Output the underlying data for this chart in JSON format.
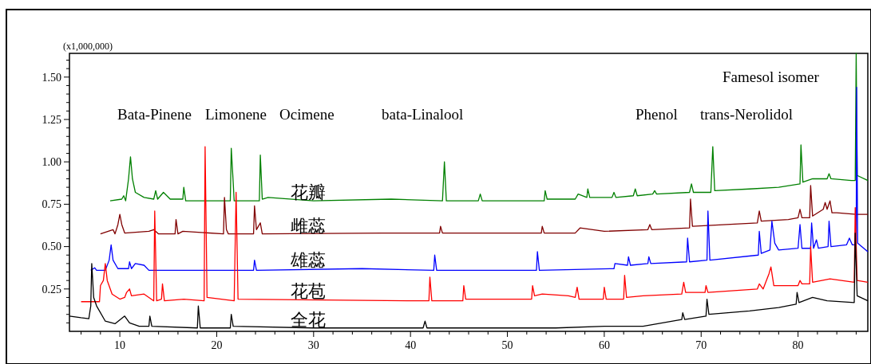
{
  "chart_data": {
    "type": "line",
    "ylabel": "(x1,000,000)",
    "annotations": [
      "Bata-Pinene",
      "Limonene",
      "Ocimene",
      "bata-Linalool",
      "Phenol",
      "trans-Nerolidol",
      "Famesol isomer"
    ],
    "xlim": [
      4.8,
      87.2
    ],
    "ylim": [
      0,
      1.64
    ],
    "xticks": [
      {
        "value": 6,
        "label": null
      },
      {
        "value": 8,
        "label": null
      },
      10,
      {
        "value": 12,
        "label": null
      },
      {
        "value": 14,
        "label": null
      },
      {
        "value": 16,
        "label": null
      },
      {
        "value": 18,
        "label": null
      },
      20,
      {
        "value": 22,
        "label": null
      },
      {
        "value": 24,
        "label": null
      },
      {
        "value": 26,
        "label": null
      },
      {
        "value": 28,
        "label": null
      },
      30,
      {
        "value": 32,
        "label": null
      },
      {
        "value": 34,
        "label": null
      },
      {
        "value": 36,
        "label": null
      },
      {
        "value": 38,
        "label": null
      },
      40,
      {
        "value": 42,
        "label": null
      },
      {
        "value": 44,
        "label": null
      },
      {
        "value": 46,
        "label": null
      },
      {
        "value": 48,
        "label": null
      },
      50,
      {
        "value": 52,
        "label": null
      },
      {
        "value": 54,
        "label": null
      },
      {
        "value": 56,
        "label": null
      },
      {
        "value": 58,
        "label": null
      },
      60,
      {
        "value": 62,
        "label": null
      },
      {
        "value": 64,
        "label": null
      },
      {
        "value": 66,
        "label": null
      },
      {
        "value": 68,
        "label": null
      },
      70,
      {
        "value": 72,
        "label": null
      },
      {
        "value": 74,
        "label": null
      },
      {
        "value": 76,
        "label": null
      },
      {
        "value": 78,
        "label": null
      },
      80,
      {
        "value": 82,
        "label": null
      },
      {
        "value": 84,
        "label": null
      },
      {
        "value": 86,
        "label": null
      }
    ],
    "yticks": [
      {
        "value": 0.05,
        "label": null
      },
      {
        "value": 0.1,
        "label": null
      },
      {
        "value": 0.15,
        "label": null
      },
      {
        "value": 0.2,
        "label": null
      },
      {
        "value": 0.25,
        "label": "0.25"
      },
      {
        "value": 0.3,
        "label": null
      },
      {
        "value": 0.35,
        "label": null
      },
      {
        "value": 0.4,
        "label": null
      },
      {
        "value": 0.45,
        "label": null
      },
      {
        "value": 0.5,
        "label": "0.50"
      },
      {
        "value": 0.55,
        "label": null
      },
      {
        "value": 0.6,
        "label": null
      },
      {
        "value": 0.65,
        "label": null
      },
      {
        "value": 0.7,
        "label": null
      },
      {
        "value": 0.75,
        "label": "0.75"
      },
      {
        "value": 0.8,
        "label": null
      },
      {
        "value": 0.85,
        "label": null
      },
      {
        "value": 0.9,
        "label": null
      },
      {
        "value": 0.95,
        "label": null
      },
      {
        "value": 1.0,
        "label": "1.00"
      },
      {
        "value": 1.05,
        "label": null
      },
      {
        "value": 1.1,
        "label": null
      },
      {
        "value": 1.15,
        "label": null
      },
      {
        "value": 1.2,
        "label": null
      },
      {
        "value": 1.25,
        "label": "1.25"
      },
      {
        "value": 1.3,
        "label": null
      },
      {
        "value": 1.35,
        "label": null
      },
      {
        "value": 1.4,
        "label": null
      },
      {
        "value": 1.45,
        "label": null
      },
      {
        "value": 1.5,
        "label": "1.50"
      },
      {
        "value": 1.55,
        "label": null
      },
      {
        "value": 1.6,
        "label": null
      }
    ],
    "series": [
      {
        "name": "花瓣",
        "color": "#008000",
        "x": [
          9,
          10.2,
          10.4,
          10.6,
          10.9,
          11.1,
          11.3,
          11.6,
          12.5,
          13.5,
          13.7,
          13.9,
          14.5,
          15.2,
          16.5,
          16.6,
          16.8,
          21.4,
          21.5,
          21.7,
          21.8,
          24.4,
          24.5,
          24.7,
          25.3,
          30,
          38,
          43.3,
          43.5,
          43.7,
          47,
          47.2,
          47.4,
          53.8,
          53.9,
          54.1,
          57,
          57.3,
          58.2,
          58.3,
          58.5,
          60.8,
          61,
          61.2,
          63,
          63.2,
          63.4,
          65,
          65.2,
          65.4,
          68.8,
          69,
          69.2,
          71,
          71.2,
          71.4,
          75,
          78,
          80.2,
          80.3,
          80.5,
          81.5,
          83,
          83.2,
          83.4,
          85.5,
          85.9,
          86,
          86.1,
          87.2
        ],
        "values": [
          0.77,
          0.78,
          0.8,
          0.77,
          0.9,
          1.03,
          0.9,
          0.82,
          0.79,
          0.78,
          0.83,
          0.78,
          0.82,
          0.78,
          0.78,
          0.85,
          0.77,
          0.77,
          1.08,
          0.88,
          0.77,
          0.77,
          1.04,
          0.78,
          0.79,
          0.77,
          0.78,
          0.77,
          1.0,
          0.77,
          0.77,
          0.81,
          0.77,
          0.77,
          0.83,
          0.78,
          0.78,
          0.81,
          0.79,
          0.84,
          0.79,
          0.79,
          0.82,
          0.79,
          0.8,
          0.84,
          0.8,
          0.81,
          0.83,
          0.81,
          0.82,
          0.87,
          0.82,
          0.82,
          1.09,
          0.83,
          0.84,
          0.85,
          0.87,
          1.1,
          0.88,
          0.9,
          0.9,
          0.93,
          0.9,
          0.89,
          0.89,
          1.64,
          0.92,
          0.89
        ]
      },
      {
        "name": "雌蕊",
        "color": "#800000",
        "x": [
          8,
          9.3,
          9.5,
          9.8,
          10,
          10.2,
          10.5,
          13,
          13.5,
          14,
          15.7,
          15.8,
          16,
          16.5,
          20.7,
          20.8,
          21,
          21.2,
          23.8,
          23.9,
          24.1,
          24.5,
          24.7,
          37,
          43,
          43.1,
          43.3,
          53.5,
          53.6,
          53.8,
          57,
          57.5,
          60,
          64.5,
          64.7,
          64.9,
          68.8,
          68.9,
          69.1,
          75.8,
          76,
          76.2,
          79,
          80,
          80.2,
          80.4,
          81.2,
          81.3,
          81.5,
          82.6,
          82.8,
          83,
          83.3,
          83.5,
          84,
          86,
          87.2
        ],
        "values": [
          0.575,
          0.6,
          0.575,
          0.63,
          0.69,
          0.63,
          0.58,
          0.59,
          0.6,
          0.575,
          0.575,
          0.66,
          0.575,
          0.59,
          0.575,
          0.79,
          0.6,
          0.575,
          0.575,
          0.74,
          0.6,
          0.64,
          0.575,
          0.58,
          0.58,
          0.62,
          0.58,
          0.58,
          0.62,
          0.58,
          0.58,
          0.61,
          0.59,
          0.6,
          0.63,
          0.6,
          0.61,
          0.78,
          0.62,
          0.64,
          0.71,
          0.65,
          0.66,
          0.67,
          0.72,
          0.67,
          0.67,
          0.86,
          0.68,
          0.72,
          0.76,
          0.72,
          0.77,
          0.7,
          0.7,
          0.69,
          0.69
        ]
      },
      {
        "name": "雄蕊",
        "color": "#0000ff",
        "x": [
          7,
          7.4,
          7.6,
          8.5,
          8.9,
          9.1,
          9.3,
          9.8,
          10.9,
          11,
          11.2,
          11.6,
          12.5,
          13,
          23.8,
          23.9,
          24.1,
          35,
          42.4,
          42.5,
          42.7,
          53,
          53.1,
          53.3,
          61,
          61.1,
          62.4,
          62.5,
          62.7,
          64.5,
          64.6,
          64.8,
          68.5,
          68.6,
          68.8,
          70.6,
          70.7,
          70.9,
          75.9,
          76,
          76.2,
          77.1,
          77.3,
          77.6,
          78,
          80,
          80.2,
          80.4,
          81.3,
          81.4,
          81.6,
          81.9,
          82.1,
          83.1,
          83.2,
          83.4,
          85,
          85.3,
          85.6,
          86,
          86.05,
          86.15,
          87.2
        ],
        "values": [
          0.36,
          0.375,
          0.36,
          0.36,
          0.42,
          0.51,
          0.42,
          0.37,
          0.37,
          0.41,
          0.37,
          0.4,
          0.39,
          0.36,
          0.36,
          0.42,
          0.36,
          0.37,
          0.36,
          0.45,
          0.36,
          0.36,
          0.47,
          0.36,
          0.37,
          0.4,
          0.39,
          0.44,
          0.39,
          0.4,
          0.44,
          0.4,
          0.41,
          0.55,
          0.41,
          0.42,
          0.71,
          0.42,
          0.45,
          0.59,
          0.46,
          0.48,
          0.65,
          0.52,
          0.48,
          0.49,
          0.63,
          0.49,
          0.49,
          0.64,
          0.49,
          0.54,
          0.49,
          0.5,
          0.65,
          0.5,
          0.51,
          0.55,
          0.51,
          0.51,
          1.44,
          0.52,
          0.47
        ]
      },
      {
        "name": "花苞",
        "color": "#ff0000",
        "x": [
          6,
          7.9,
          8,
          8.3,
          8.5,
          8.7,
          9.2,
          10,
          10.5,
          10.7,
          11,
          11.2,
          12.5,
          13,
          13.5,
          13.6,
          13.8,
          14.3,
          14.4,
          14.6,
          16.6,
          18.7,
          18.8,
          19,
          21.8,
          22,
          22.2,
          40,
          41.9,
          42,
          42.2,
          45.4,
          45.5,
          45.7,
          50.6,
          52.5,
          52.6,
          52.8,
          53.6,
          56.3,
          57,
          57.2,
          57.4,
          59.9,
          60,
          60.2,
          62,
          62.1,
          62.3,
          64,
          68,
          68.2,
          68.4,
          70.4,
          70.5,
          70.7,
          75.8,
          76,
          76.4,
          77,
          77.2,
          77.5,
          80,
          80.2,
          80.4,
          81.2,
          81.3,
          81.5,
          83.3,
          85.8,
          85.9,
          86.1,
          87.2
        ],
        "values": [
          0.175,
          0.175,
          0.27,
          0.3,
          0.4,
          0.3,
          0.22,
          0.19,
          0.2,
          0.23,
          0.25,
          0.21,
          0.22,
          0.2,
          0.18,
          0.71,
          0.18,
          0.19,
          0.28,
          0.18,
          0.19,
          0.18,
          1.09,
          0.2,
          0.18,
          0.82,
          0.19,
          0.18,
          0.18,
          0.32,
          0.18,
          0.18,
          0.27,
          0.19,
          0.19,
          0.19,
          0.27,
          0.21,
          0.22,
          0.21,
          0.2,
          0.26,
          0.19,
          0.19,
          0.26,
          0.19,
          0.19,
          0.33,
          0.2,
          0.21,
          0.22,
          0.29,
          0.23,
          0.23,
          0.27,
          0.23,
          0.25,
          0.28,
          0.25,
          0.34,
          0.38,
          0.27,
          0.27,
          0.3,
          0.28,
          0.28,
          0.5,
          0.29,
          0.31,
          0.29,
          0.73,
          0.3,
          0.29
        ]
      },
      {
        "name": "全花",
        "color": "#000000",
        "x": [
          4.8,
          6,
          6.8,
          7,
          7.1,
          7.3,
          7.6,
          8.5,
          9.5,
          10.5,
          11,
          12,
          13,
          13.1,
          13.3,
          18,
          18.1,
          18.3,
          21.4,
          21.5,
          21.7,
          30,
          41.3,
          41.5,
          41.7,
          55,
          60,
          64,
          68,
          68.1,
          68.3,
          70.5,
          70.6,
          70.8,
          75,
          78,
          79.8,
          79.9,
          80.1,
          81.5,
          83,
          85.8,
          85.9,
          86.1,
          87.2
        ],
        "values": [
          0.09,
          0.08,
          0.075,
          0.15,
          0.4,
          0.2,
          0.15,
          0.06,
          0.045,
          0.09,
          0.05,
          0.03,
          0.03,
          0.09,
          0.03,
          0.02,
          0.15,
          0.02,
          0.02,
          0.1,
          0.03,
          0.02,
          0.02,
          0.06,
          0.02,
          0.02,
          0.03,
          0.03,
          0.07,
          0.11,
          0.07,
          0.09,
          0.19,
          0.1,
          0.12,
          0.14,
          0.16,
          0.23,
          0.17,
          0.2,
          0.18,
          0.17,
          0.58,
          0.21,
          0.18
        ]
      }
    ]
  }
}
